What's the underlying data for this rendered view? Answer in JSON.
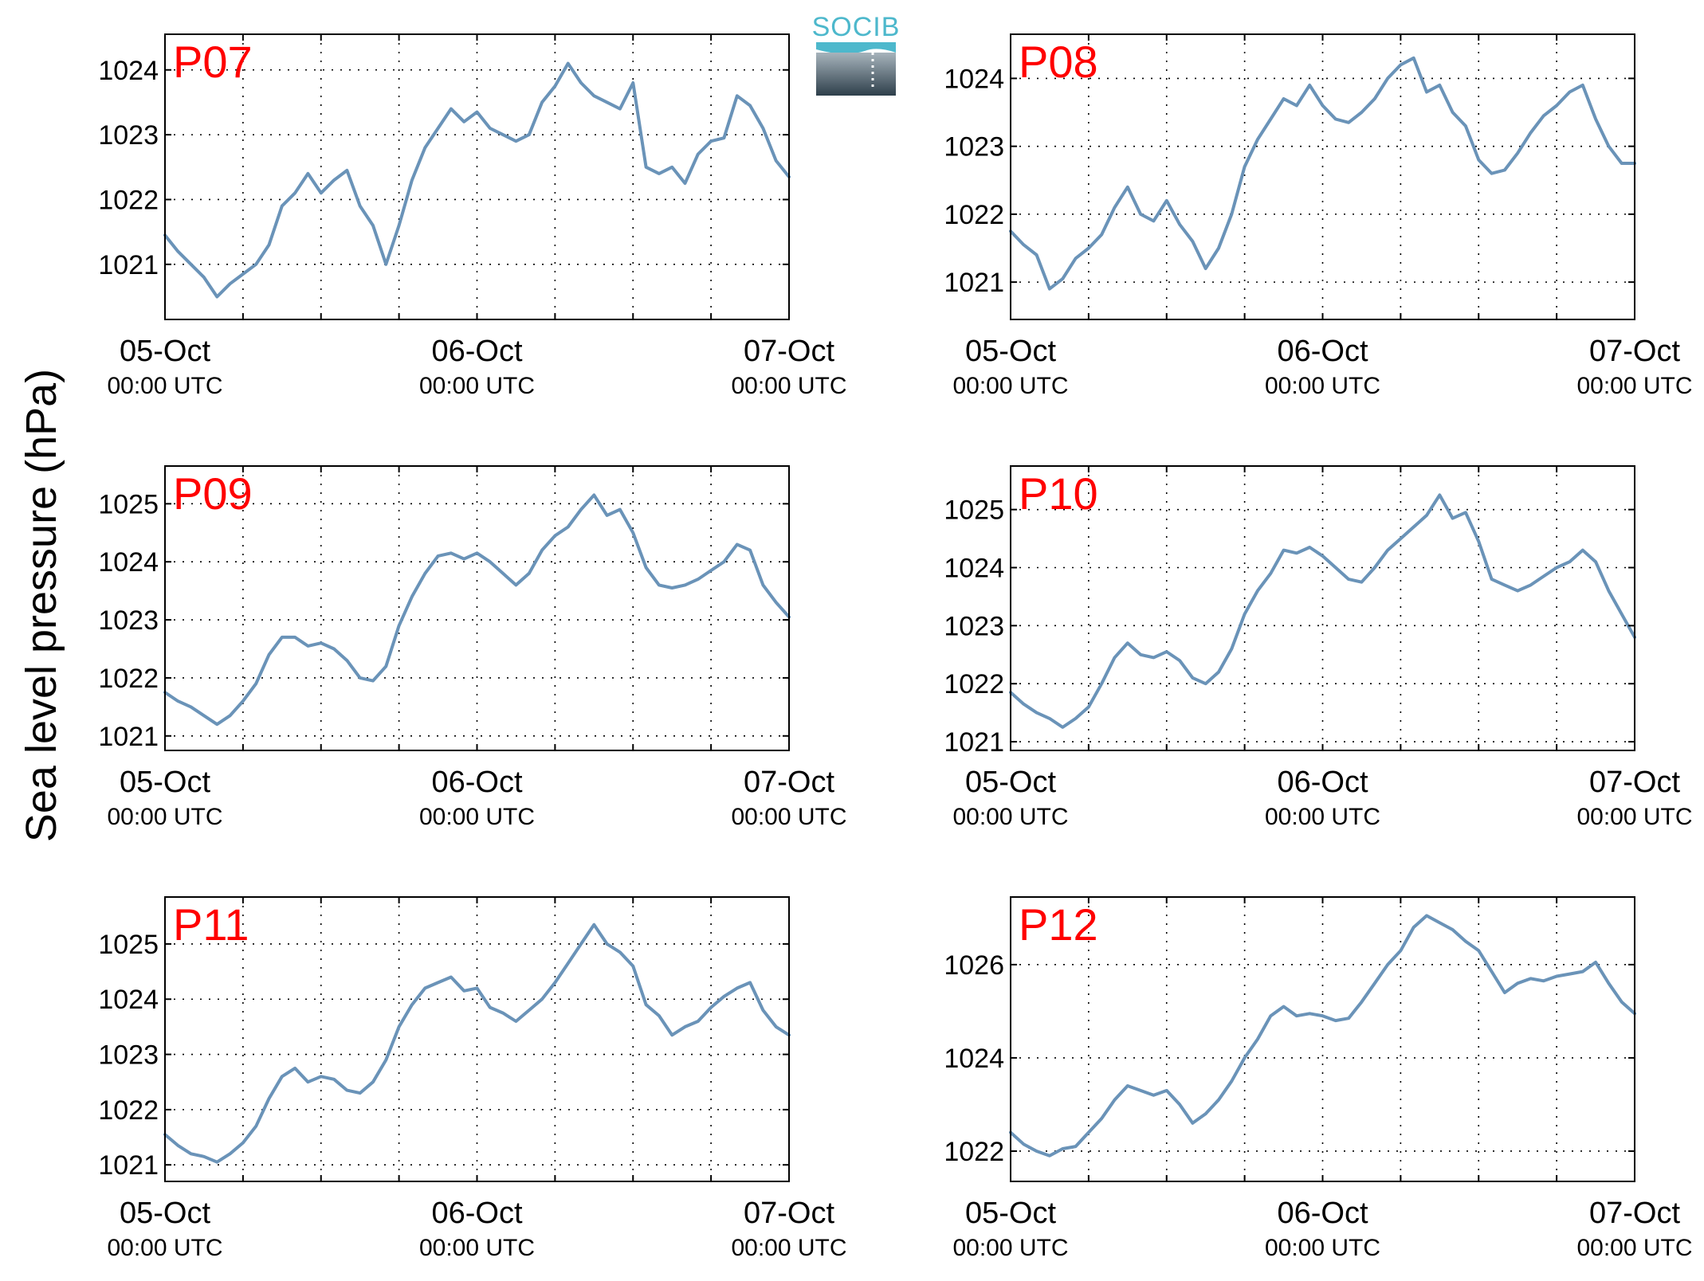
{
  "figure": {
    "ylabel": "Sea level pressure (hPa)",
    "logo_text": "SOCIB",
    "line_color": "#6a93b8",
    "station_label_color": "#ff0000",
    "grid": true,
    "x_ticks": [
      {
        "date": "05-Oct",
        "time": "00:00 UTC"
      },
      {
        "date": "06-Oct",
        "time": "00:00 UTC"
      },
      {
        "date": "07-Oct",
        "time": "00:00 UTC"
      }
    ]
  },
  "chart_data": [
    {
      "type": "line",
      "title": "P07",
      "xlim": [
        "2015-10-05T00:00",
        "2015-10-07T00:00"
      ],
      "ylim": [
        1020.15,
        1024.55
      ],
      "yticks": [
        1021,
        1022,
        1023,
        1024
      ],
      "x_hours": [
        0,
        1,
        2,
        3,
        4,
        5,
        6,
        7,
        8,
        9,
        10,
        11,
        12,
        13,
        14,
        15,
        16,
        17,
        18,
        19,
        20,
        21,
        22,
        23,
        24,
        25,
        26,
        27,
        28,
        29,
        30,
        31,
        32,
        33,
        34,
        35,
        36,
        37,
        38,
        39,
        40,
        41,
        42,
        43,
        44,
        45,
        46,
        47,
        48
      ],
      "values": [
        1021.45,
        1021.2,
        1021.0,
        1020.8,
        1020.5,
        1020.7,
        1020.85,
        1021.0,
        1021.3,
        1021.9,
        1022.1,
        1022.4,
        1022.1,
        1022.3,
        1022.45,
        1021.9,
        1021.6,
        1021.0,
        1021.6,
        1022.3,
        1022.8,
        1023.1,
        1023.4,
        1023.2,
        1023.35,
        1023.1,
        1023.0,
        1022.9,
        1023.0,
        1023.5,
        1023.75,
        1024.1,
        1023.8,
        1023.6,
        1023.5,
        1023.4,
        1023.8,
        1022.5,
        1022.4,
        1022.5,
        1022.25,
        1022.7,
        1022.9,
        1022.95,
        1023.6,
        1023.45,
        1023.1,
        1022.6,
        1022.35
      ]
    },
    {
      "type": "line",
      "title": "P08",
      "xlim": [
        "2015-10-05T00:00",
        "2015-10-07T00:00"
      ],
      "ylim": [
        1020.45,
        1024.65
      ],
      "yticks": [
        1021,
        1022,
        1023,
        1024
      ],
      "x_hours": [
        0,
        1,
        2,
        3,
        4,
        5,
        6,
        7,
        8,
        9,
        10,
        11,
        12,
        13,
        14,
        15,
        16,
        17,
        18,
        19,
        20,
        21,
        22,
        23,
        24,
        25,
        26,
        27,
        28,
        29,
        30,
        31,
        32,
        33,
        34,
        35,
        36,
        37,
        38,
        39,
        40,
        41,
        42,
        43,
        44,
        45,
        46,
        47,
        48
      ],
      "values": [
        1021.75,
        1021.55,
        1021.4,
        1020.9,
        1021.05,
        1021.35,
        1021.5,
        1021.7,
        1022.1,
        1022.4,
        1022.0,
        1021.9,
        1022.2,
        1021.85,
        1021.6,
        1021.2,
        1021.5,
        1022.0,
        1022.7,
        1023.1,
        1023.4,
        1023.7,
        1023.6,
        1023.9,
        1023.6,
        1023.4,
        1023.35,
        1023.5,
        1023.7,
        1024.0,
        1024.2,
        1024.3,
        1023.8,
        1023.9,
        1023.5,
        1023.3,
        1022.8,
        1022.6,
        1022.65,
        1022.9,
        1023.2,
        1023.45,
        1023.6,
        1023.8,
        1023.9,
        1023.4,
        1023.0,
        1022.75,
        1022.75
      ]
    },
    {
      "type": "line",
      "title": "P09",
      "xlim": [
        "2015-10-05T00:00",
        "2015-10-07T00:00"
      ],
      "ylim": [
        1020.75,
        1025.65
      ],
      "yticks": [
        1021,
        1022,
        1023,
        1024,
        1025
      ],
      "x_hours": [
        0,
        1,
        2,
        3,
        4,
        5,
        6,
        7,
        8,
        9,
        10,
        11,
        12,
        13,
        14,
        15,
        16,
        17,
        18,
        19,
        20,
        21,
        22,
        23,
        24,
        25,
        26,
        27,
        28,
        29,
        30,
        31,
        32,
        33,
        34,
        35,
        36,
        37,
        38,
        39,
        40,
        41,
        42,
        43,
        44,
        45,
        46,
        47,
        48
      ],
      "values": [
        1021.75,
        1021.6,
        1021.5,
        1021.35,
        1021.2,
        1021.35,
        1021.6,
        1021.9,
        1022.4,
        1022.7,
        1022.7,
        1022.55,
        1022.6,
        1022.5,
        1022.3,
        1022.0,
        1021.95,
        1022.2,
        1022.9,
        1023.4,
        1023.8,
        1024.1,
        1024.15,
        1024.05,
        1024.15,
        1024.0,
        1023.8,
        1023.6,
        1023.8,
        1024.2,
        1024.45,
        1024.6,
        1024.9,
        1025.15,
        1024.8,
        1024.9,
        1024.5,
        1023.9,
        1023.6,
        1023.55,
        1023.6,
        1023.7,
        1023.85,
        1024.0,
        1024.3,
        1024.2,
        1023.6,
        1023.3,
        1023.05
      ]
    },
    {
      "type": "line",
      "title": "P10",
      "xlim": [
        "2015-10-05T00:00",
        "2015-10-07T00:00"
      ],
      "ylim": [
        1020.85,
        1025.75
      ],
      "yticks": [
        1021,
        1022,
        1023,
        1024,
        1025
      ],
      "x_hours": [
        0,
        1,
        2,
        3,
        4,
        5,
        6,
        7,
        8,
        9,
        10,
        11,
        12,
        13,
        14,
        15,
        16,
        17,
        18,
        19,
        20,
        21,
        22,
        23,
        24,
        25,
        26,
        27,
        28,
        29,
        30,
        31,
        32,
        33,
        34,
        35,
        36,
        37,
        38,
        39,
        40,
        41,
        42,
        43,
        44,
        45,
        46,
        47,
        48
      ],
      "values": [
        1021.85,
        1021.65,
        1021.5,
        1021.4,
        1021.25,
        1021.4,
        1021.6,
        1022.0,
        1022.45,
        1022.7,
        1022.5,
        1022.45,
        1022.55,
        1022.4,
        1022.1,
        1022.0,
        1022.2,
        1022.6,
        1023.2,
        1023.6,
        1023.9,
        1024.3,
        1024.25,
        1024.35,
        1024.2,
        1024.0,
        1023.8,
        1023.75,
        1024.0,
        1024.3,
        1024.5,
        1024.7,
        1024.9,
        1025.25,
        1024.85,
        1024.95,
        1024.45,
        1023.8,
        1023.7,
        1023.6,
        1023.7,
        1023.85,
        1024.0,
        1024.1,
        1024.3,
        1024.1,
        1023.6,
        1023.2,
        1022.8
      ]
    },
    {
      "type": "line",
      "title": "P11",
      "xlim": [
        "2015-10-05T00:00",
        "2015-10-07T00:00"
      ],
      "ylim": [
        1020.7,
        1025.85
      ],
      "yticks": [
        1021,
        1022,
        1023,
        1024,
        1025
      ],
      "x_hours": [
        0,
        1,
        2,
        3,
        4,
        5,
        6,
        7,
        8,
        9,
        10,
        11,
        12,
        13,
        14,
        15,
        16,
        17,
        18,
        19,
        20,
        21,
        22,
        23,
        24,
        25,
        26,
        27,
        28,
        29,
        30,
        31,
        32,
        33,
        34,
        35,
        36,
        37,
        38,
        39,
        40,
        41,
        42,
        43,
        44,
        45,
        46,
        47,
        48
      ],
      "values": [
        1021.55,
        1021.35,
        1021.2,
        1021.15,
        1021.05,
        1021.2,
        1021.4,
        1021.7,
        1022.2,
        1022.6,
        1022.75,
        1022.5,
        1022.6,
        1022.55,
        1022.35,
        1022.3,
        1022.5,
        1022.9,
        1023.5,
        1023.9,
        1024.2,
        1024.3,
        1024.4,
        1024.15,
        1024.2,
        1023.85,
        1023.75,
        1023.6,
        1023.8,
        1024.0,
        1024.3,
        1024.65,
        1025.0,
        1025.35,
        1025.0,
        1024.85,
        1024.6,
        1023.9,
        1023.7,
        1023.35,
        1023.5,
        1023.6,
        1023.85,
        1024.05,
        1024.2,
        1024.3,
        1023.8,
        1023.5,
        1023.35
      ]
    },
    {
      "type": "line",
      "title": "P12",
      "xlim": [
        "2015-10-05T00:00",
        "2015-10-07T00:00"
      ],
      "ylim": [
        1021.35,
        1027.45
      ],
      "yticks": [
        1022,
        1024,
        1026
      ],
      "x_hours": [
        0,
        1,
        2,
        3,
        4,
        5,
        6,
        7,
        8,
        9,
        10,
        11,
        12,
        13,
        14,
        15,
        16,
        17,
        18,
        19,
        20,
        21,
        22,
        23,
        24,
        25,
        26,
        27,
        28,
        29,
        30,
        31,
        32,
        33,
        34,
        35,
        36,
        37,
        38,
        39,
        40,
        41,
        42,
        43,
        44,
        45,
        46,
        47,
        48
      ],
      "values": [
        1022.4,
        1022.15,
        1022.0,
        1021.9,
        1022.05,
        1022.1,
        1022.4,
        1022.7,
        1023.1,
        1023.4,
        1023.3,
        1023.2,
        1023.3,
        1023.0,
        1022.6,
        1022.8,
        1023.1,
        1023.5,
        1024.0,
        1024.4,
        1024.9,
        1025.1,
        1024.9,
        1024.95,
        1024.9,
        1024.8,
        1024.85,
        1025.2,
        1025.6,
        1026.0,
        1026.3,
        1026.8,
        1027.05,
        1026.9,
        1026.75,
        1026.5,
        1026.3,
        1025.85,
        1025.4,
        1025.6,
        1025.7,
        1025.65,
        1025.75,
        1025.8,
        1025.85,
        1026.05,
        1025.6,
        1025.2,
        1024.95
      ]
    }
  ]
}
